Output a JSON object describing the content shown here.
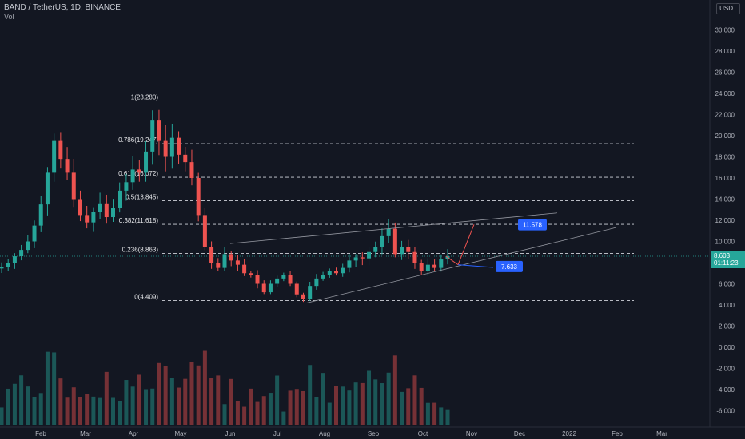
{
  "header": {
    "title": "BAND / TetherUS, 1D, BINANCE",
    "volume_label": "Vol",
    "currency": "USDT"
  },
  "chart_data": {
    "type": "candlestick",
    "yticks": [
      "30.000",
      "28.000",
      "26.000",
      "24.000",
      "22.000",
      "20.000",
      "18.000",
      "16.000",
      "14.000",
      "12.000",
      "10.000",
      "8.000",
      "6.000",
      "4.000",
      "2.000",
      "0.000",
      "-2.000",
      "-4.000",
      "-6.000"
    ],
    "ytick_values": [
      30,
      28,
      26,
      24,
      22,
      20,
      18,
      16,
      14,
      12,
      10,
      8,
      6,
      4,
      2,
      0,
      -2,
      -4,
      -6
    ],
    "xticks": [
      "Feb",
      "Mar",
      "Apr",
      "May",
      "Jun",
      "Jul",
      "Aug",
      "Sep",
      "Oct",
      "Nov",
      "Dec",
      "2022",
      "Feb",
      "Mar"
    ],
    "fib_levels": [
      {
        "label": "1(23.280)",
        "value": 23.28
      },
      {
        "label": "0.786(19.247)",
        "value": 19.247
      },
      {
        "label": "0.618(16.072)",
        "value": 16.072
      },
      {
        "label": "0.5(13.845)",
        "value": 13.845
      },
      {
        "label": "0.382(11.618)",
        "value": 11.618
      },
      {
        "label": "0.236(8.863)",
        "value": 8.863
      },
      {
        "label": "0(4.409)",
        "value": 4.409
      }
    ],
    "price_series": [
      7.6,
      8.0,
      8.6,
      9.2,
      10.0,
      11.5,
      13.5,
      16.5,
      19.5,
      17.8,
      16.5,
      14.0,
      12.5,
      11.8,
      12.8,
      13.6,
      12.3,
      13.2,
      14.8,
      15.6,
      16.8,
      16.5,
      18.5,
      21.5,
      19.5,
      18.0,
      19.8,
      18.2,
      17.5,
      16.0,
      12.5,
      9.5,
      8.0,
      7.5,
      8.8,
      8.2,
      7.8,
      7.0,
      6.8,
      6.0,
      5.2,
      6.0,
      6.5,
      6.8,
      6.0,
      5.0,
      4.6,
      5.8,
      6.5,
      6.8,
      7.2,
      7.0,
      7.5,
      8.2,
      8.5,
      8.4,
      9.0,
      9.5,
      10.5,
      11.2,
      8.8,
      9.5,
      9.0,
      8.0,
      7.2,
      7.8,
      7.5,
      8.3,
      8.6
    ],
    "annotations": [
      {
        "label": "11.578",
        "value": 11.578
      },
      {
        "label": "7.633",
        "value": 7.633
      }
    ],
    "last_price": {
      "label": "8.603",
      "countdown": "01:11:23",
      "value": 8.603
    },
    "colors": {
      "up": "#26a69a",
      "down": "#ef5350",
      "badge": "#2962ff",
      "background": "#131722"
    }
  }
}
